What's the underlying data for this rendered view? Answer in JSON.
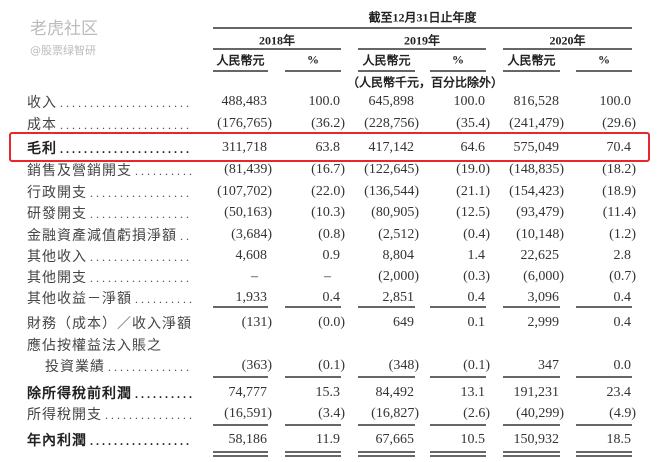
{
  "header": {
    "period": "截至12月31日止年度",
    "years": [
      "2018年",
      "2019年",
      "2020年"
    ],
    "col_units": [
      "人民幣元",
      "%",
      "人民幣元",
      "%",
      "人民幣元",
      "%"
    ],
    "note": "（人民幣千元，百分比除外）"
  },
  "highlight_color": "#e8262b",
  "rows": [
    {
      "label": "收入",
      "values": [
        "488,483",
        "100.0",
        "645,898",
        "100.0",
        "816,528",
        "100.0"
      ]
    },
    {
      "label": "成本",
      "values": [
        "(176,765)",
        "(36.2)",
        "(228,756)",
        "(35.4)",
        "(241,479)",
        "(29.6)"
      ]
    },
    {
      "label": "毛利",
      "bold": true,
      "highlighted": true,
      "values": [
        "311,718",
        "63.8",
        "417,142",
        "64.6",
        "575,049",
        "70.4"
      ]
    },
    {
      "label": "銷售及營銷開支",
      "values": [
        "(81,439)",
        "(16.7)",
        "(122,645)",
        "(19.0)",
        "(148,835)",
        "(18.2)"
      ]
    },
    {
      "label": "行政開支",
      "values": [
        "(107,702)",
        "(22.0)",
        "(136,544)",
        "(21.1)",
        "(154,423)",
        "(18.9)"
      ]
    },
    {
      "label": "研發開支",
      "values": [
        "(50,163)",
        "(10.3)",
        "(80,905)",
        "(12.5)",
        "(93,479)",
        "(11.4)"
      ]
    },
    {
      "label": "金融資產減值虧損淨額",
      "values": [
        "(3,684)",
        "(0.8)",
        "(2,512)",
        "(0.4)",
        "(10,148)",
        "(1.2)"
      ]
    },
    {
      "label": "其他收入",
      "values": [
        "4,608",
        "0.9",
        "8,804",
        "1.4",
        "22,625",
        "2.8"
      ]
    },
    {
      "label": "其他開支",
      "values": [
        "–",
        "–",
        "(2,000)",
        "(0.3)",
        "(6,000)",
        "(0.7)"
      ]
    },
    {
      "label": "其他收益－淨額",
      "values": [
        "1,933",
        "0.4",
        "2,851",
        "0.4",
        "3,096",
        "0.4"
      ]
    },
    {
      "label": "財務（成本）／收入淨額",
      "values": [
        "(131)",
        "(0.0)",
        "649",
        "0.1",
        "2,999",
        "0.4"
      ]
    },
    {
      "label": "應佔按權益法入賬之",
      "label2": "投資業績",
      "values": [
        "(363)",
        "(0.1)",
        "(348)",
        "(0.1)",
        "347",
        "0.0"
      ]
    },
    {
      "label": "除所得稅前利潤",
      "bold": true,
      "values": [
        "74,777",
        "15.3",
        "84,492",
        "13.1",
        "191,231",
        "23.4"
      ]
    },
    {
      "label": "所得稅開支",
      "values": [
        "(16,591)",
        "(3.4)",
        "(16,827)",
        "(2.6)",
        "(40,299)",
        "(4.9)"
      ]
    },
    {
      "label": "年內利潤",
      "bold": true,
      "values": [
        "58,186",
        "11.9",
        "67,665",
        "10.5",
        "150,932",
        "18.5"
      ]
    }
  ],
  "watermark": {
    "line1": "老虎社区",
    "line2": "@股票绿智研"
  }
}
